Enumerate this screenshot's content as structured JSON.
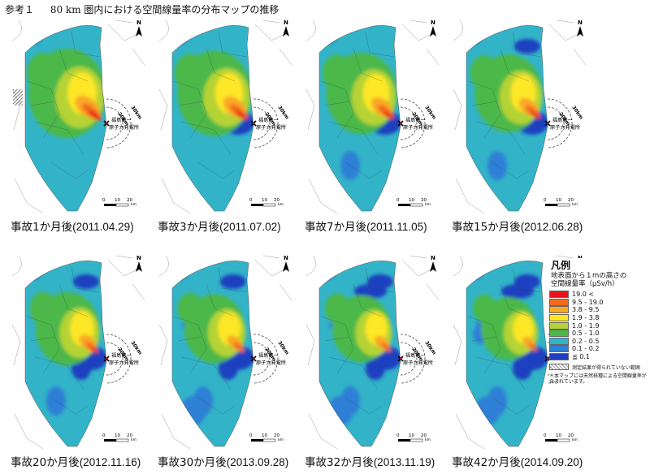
{
  "header": {
    "ref": "参考１",
    "title": "80 km 圏内における空間線量率の分布マップの推移"
  },
  "plant_label": {
    "line1": "福島第一",
    "line2": "原子力発電所"
  },
  "rings": {
    "outer": "30km",
    "inner": "20km"
  },
  "scale_bar": {
    "ticks": [
      "0",
      "10",
      "20"
    ],
    "unit": "km"
  },
  "compass": "N",
  "panels": [
    {
      "label": "事故1か月後",
      "date": "(2011.04.29)",
      "level": 1.0
    },
    {
      "label": "事故3か月後",
      "date": "(2011.07.02)",
      "level": 0.9
    },
    {
      "label": "事故7か月後",
      "date": "(2011.11.05)",
      "level": 0.8
    },
    {
      "label": "事故15か月後",
      "date": "(2012.06.28)",
      "level": 0.72
    },
    {
      "label": "事故20か月後",
      "date": "(2012.11.16)",
      "level": 0.6
    },
    {
      "label": "事故30か月後",
      "date": "(2013.09.28)",
      "level": 0.5
    },
    {
      "label": "事故32か月後",
      "date": "(2013.11.19)",
      "level": 0.45
    },
    {
      "label": "事故42か月後",
      "date": "(2014.09.20)",
      "level": 0.35
    }
  ],
  "legend": {
    "title": "凡例",
    "subtitle1": "地表面から１mの高さの",
    "subtitle2": "空間線量率（μSv/h）",
    "items": [
      {
        "label": "19.0 <",
        "color": "#e8141c"
      },
      {
        "label": "9.5 - 19.0",
        "color": "#f46b1e"
      },
      {
        "label": "3.8 - 9.5",
        "color": "#f9a825"
      },
      {
        "label": "1.9 - 3.8",
        "color": "#fde725"
      },
      {
        "label": "1.0 - 1.9",
        "color": "#b5d334"
      },
      {
        "label": "0.5 - 1.0",
        "color": "#4cb848"
      },
      {
        "label": "0.2 - 0.5",
        "color": "#32b3c8"
      },
      {
        "label": "0.1 - 0.2",
        "color": "#2f7fd6"
      },
      {
        "label": "≦ 0.1",
        "color": "#1f3fbf"
      }
    ],
    "hatch_note": "測定結果が得られていない範囲",
    "footnote": "＊本マップには天然核種による空間線量率が含まれています。"
  }
}
